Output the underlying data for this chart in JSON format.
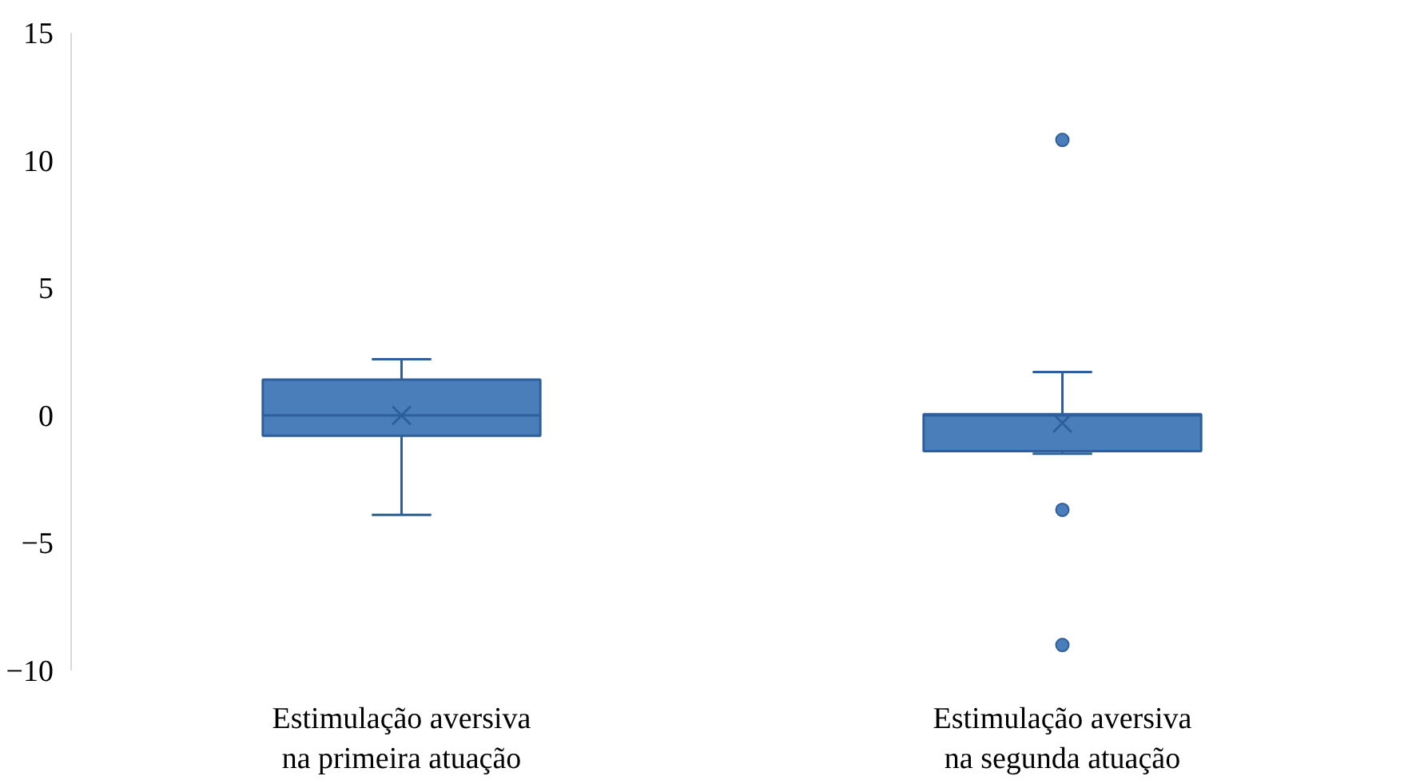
{
  "chart_data": {
    "type": "box",
    "categories": [
      "Estimulação aversiva\nna primeira atuação",
      "Estimulação aversiva\nna segunda atuação"
    ],
    "boxes": [
      {
        "low": -3.9,
        "q1": -0.8,
        "median": 0,
        "q3": 1.4,
        "high": 2.2,
        "mean": 0
      },
      {
        "low": -1.5,
        "q1": -1.4,
        "median": 0,
        "q3": 0.05,
        "high": 1.7,
        "mean": -0.3,
        "outliers": [
          10.8,
          -3.7,
          -9.0
        ]
      }
    ],
    "color": "#4a7ebb",
    "ylim": [
      -10,
      15
    ],
    "yticks": [
      -10,
      -5,
      0,
      5,
      10,
      15
    ]
  }
}
